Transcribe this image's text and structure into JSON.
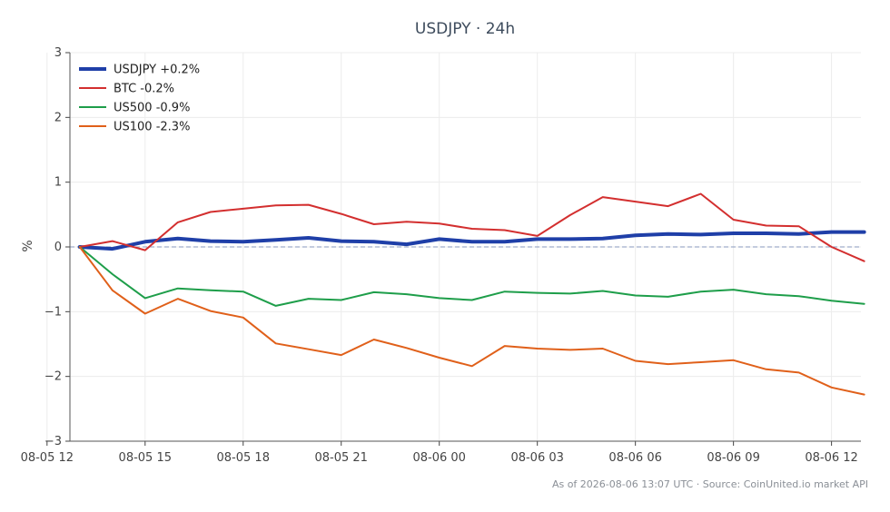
{
  "chart_data": {
    "type": "line",
    "title": "USDJPY · 24h",
    "xlabel": "",
    "ylabel": "%",
    "footnote": "As of 2026-08-06 13:07 UTC · Source: CoinUnited.io market API",
    "xlim": [
      -0.3,
      23.9
    ],
    "ylim": [
      -3,
      3
    ],
    "x_ticks": [
      {
        "x": -1,
        "label": "08-05 12"
      },
      {
        "x": 2,
        "label": "08-05 15"
      },
      {
        "x": 5,
        "label": "08-05 18"
      },
      {
        "x": 8,
        "label": "08-05 21"
      },
      {
        "x": 11,
        "label": "08-06 00"
      },
      {
        "x": 14,
        "label": "08-06 03"
      },
      {
        "x": 17,
        "label": "08-06 06"
      },
      {
        "x": 20,
        "label": "08-06 09"
      },
      {
        "x": 23,
        "label": "08-06 12"
      }
    ],
    "y_ticks": [
      {
        "y": 3,
        "label": "3"
      },
      {
        "y": 2,
        "label": "2"
      },
      {
        "y": 1,
        "label": "1"
      },
      {
        "y": 0,
        "label": "0"
      },
      {
        "y": -1,
        "label": "−1"
      },
      {
        "y": -2,
        "label": "−2"
      },
      {
        "y": -3,
        "label": "−3"
      }
    ],
    "zero_line": true,
    "grid": true,
    "legend_position": "top-left",
    "series": [
      {
        "name": "USDJPY +0.2%",
        "color": "#1f3fa8",
        "width": 4,
        "values": [
          0.0,
          -0.03,
          0.08,
          0.13,
          0.09,
          0.08,
          0.11,
          0.14,
          0.09,
          0.08,
          0.04,
          0.12,
          0.08,
          0.08,
          0.12,
          0.12,
          0.13,
          0.18,
          0.2,
          0.19,
          0.21,
          0.21,
          0.2,
          0.23,
          0.23
        ]
      },
      {
        "name": "BTC -0.2%",
        "color": "#d32f2f",
        "width": 2,
        "values": [
          0.0,
          0.09,
          -0.05,
          0.38,
          0.54,
          0.59,
          0.64,
          0.65,
          0.51,
          0.35,
          0.39,
          0.36,
          0.28,
          0.26,
          0.17,
          0.49,
          0.77,
          0.7,
          0.63,
          0.82,
          0.42,
          0.33,
          0.32,
          0.0,
          -0.22
        ]
      },
      {
        "name": "US500 -0.9%",
        "color": "#1e9e4a",
        "width": 2,
        "values": [
          0.0,
          -0.42,
          -0.79,
          -0.64,
          -0.67,
          -0.69,
          -0.91,
          -0.8,
          -0.82,
          -0.7,
          -0.73,
          -0.79,
          -0.82,
          -0.69,
          -0.71,
          -0.72,
          -0.68,
          -0.75,
          -0.77,
          -0.69,
          -0.66,
          -0.73,
          -0.76,
          -0.83,
          -0.88
        ]
      },
      {
        "name": "US100 -2.3%",
        "color": "#e0601a",
        "width": 2,
        "values": [
          0.0,
          -0.67,
          -1.03,
          -0.8,
          -0.99,
          -1.09,
          -1.49,
          -1.58,
          -1.67,
          -1.43,
          -1.56,
          -1.71,
          -1.84,
          -1.53,
          -1.57,
          -1.59,
          -1.57,
          -1.76,
          -1.81,
          -1.78,
          -1.75,
          -1.89,
          -1.94,
          -2.17,
          -2.28
        ]
      }
    ]
  }
}
